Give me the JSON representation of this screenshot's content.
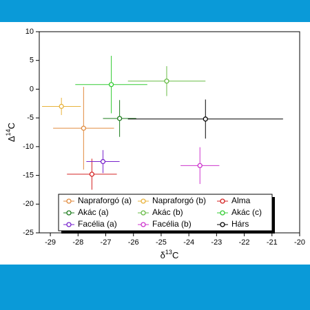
{
  "chart_data": {
    "type": "scatter",
    "xlabel": [
      "δ",
      "13",
      "C"
    ],
    "ylabel": [
      "Δ",
      "14",
      "C"
    ],
    "xlim": [
      -29.4,
      -20
    ],
    "ylim": [
      -25,
      10
    ],
    "xticks": [
      -29,
      -28,
      -27,
      -26,
      -25,
      -24,
      -23,
      -22,
      -21,
      -20
    ],
    "yticks": [
      -25,
      -20,
      -15,
      -10,
      -5,
      0,
      5,
      10
    ],
    "series": [
      {
        "name": "Napraforgó (a)",
        "color": "#e08a3c",
        "x": [
          -27.8
        ],
        "values": [
          -6.8
        ],
        "xerr": [
          1.1
        ],
        "yerr": [
          7.2
        ]
      },
      {
        "name": "Napraforgó (b)",
        "color": "#e8b23a",
        "x": [
          -28.6
        ],
        "values": [
          -3
        ],
        "xerr": [
          0.7
        ],
        "yerr": [
          1.5
        ]
      },
      {
        "name": "Alma",
        "color": "#d42020",
        "x": [
          -27.5
        ],
        "values": [
          -14.8
        ],
        "xerr": [
          0.9
        ],
        "yerr": [
          2.7
        ]
      },
      {
        "name": "Akác (a)",
        "color": "#1a7a1a",
        "x": [
          -26.5
        ],
        "values": [
          -5.1
        ],
        "xerr": [
          0.6
        ],
        "yerr": [
          3.2
        ]
      },
      {
        "name": "Akác (b)",
        "color": "#66bb44",
        "x": [
          -24.8
        ],
        "values": [
          1.4
        ],
        "xerr": [
          1.4
        ],
        "yerr": [
          2.6
        ]
      },
      {
        "name": "Akác (c)",
        "color": "#33cc33",
        "x": [
          -26.8
        ],
        "values": [
          0.8
        ],
        "xerr": [
          1.3
        ],
        "yerr": [
          5
        ]
      },
      {
        "name": "Facélia (a)",
        "color": "#7722cc",
        "x": [
          -27.1
        ],
        "values": [
          -12.6
        ],
        "xerr": [
          0.6
        ],
        "yerr": [
          2
        ]
      },
      {
        "name": "Facélia (b)",
        "color": "#cc33cc",
        "x": [
          -23.6
        ],
        "values": [
          -13.3
        ],
        "xerr": [
          0.7
        ],
        "yerr": [
          3.2
        ]
      },
      {
        "name": "Hárs",
        "color": "#000000",
        "x": [
          -23.4
        ],
        "values": [
          -5.2
        ],
        "xerr": [
          2.8
        ],
        "yerr": [
          3.4
        ]
      }
    ]
  }
}
